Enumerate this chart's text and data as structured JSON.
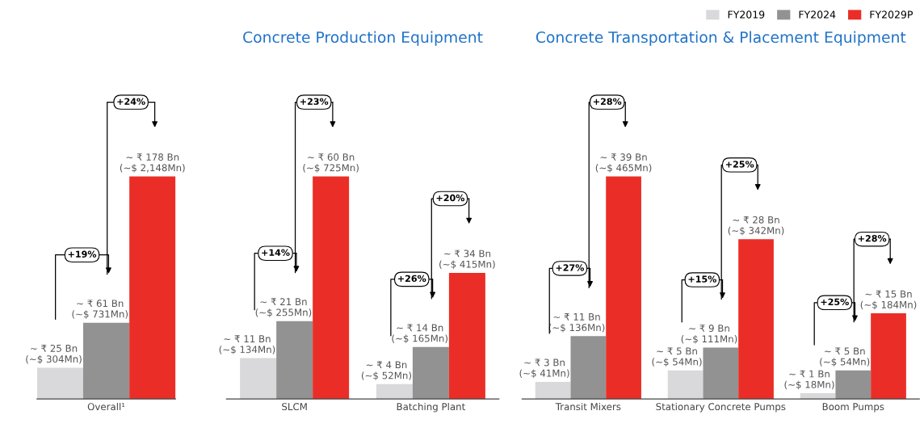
{
  "chart_data": [
    {
      "type": "bar",
      "categories": [
        null,
        "Overall¹",
        null
      ],
      "values": [
        25,
        61,
        178
      ],
      "colors": [
        "#d9d9db",
        "#929292",
        "#ea2e27"
      ],
      "value_labels": [
        "~ ₹ 25 Bn\n(~$ 304Mn)",
        "~ ₹ 61 Bn\n(~$ 731Mn)",
        "~ ₹ 178 Bn\n(~$ 2,148Mn)"
      ],
      "annotations": [
        "+19%",
        "+24%"
      ]
    },
    {
      "type": "bar",
      "title": "Concrete Production Equipment",
      "categories": [
        "SLCM",
        "Batching Plant"
      ],
      "series": [
        {
          "color": "#d9d9db",
          "values": [
            11,
            4
          ],
          "value_labels": [
            "~ ₹ 11 Bn\n(~$ 134Mn)",
            "~ ₹ 4 Bn\n(~$ 52Mn)"
          ]
        },
        {
          "color": "#929292",
          "values": [
            21,
            14
          ],
          "value_labels": [
            "~ ₹ 21 Bn\n(~$ 255Mn)",
            "~ ₹ 14 Bn\n(~$ 165Mn)"
          ]
        },
        {
          "color": "#ea2e27",
          "values": [
            60,
            34
          ],
          "value_labels": [
            "~ ₹ 60 Bn\n(~$ 725Mn)",
            "~ ₹ 34 Bn\n(~$ 415Mn)"
          ]
        }
      ],
      "annotations": [
        "+14%",
        "+23%",
        "+26%",
        "+20%"
      ]
    },
    {
      "type": "bar",
      "title": "Concrete Transportation & Placement Equipment",
      "categories": [
        "Transit Mixers",
        "Stationary Concrete Pumps",
        "Boom Pumps"
      ],
      "series": [
        {
          "name": "FY2019",
          "color": "#d9d9db",
          "values": [
            3,
            5,
            1
          ],
          "value_labels": [
            "~ ₹ 3 Bn\n(~$ 41Mn)",
            "~ ₹ 5 Bn\n(~$ 54Mn)",
            "~ ₹ 1 Bn\n(~$ 18Mn)"
          ]
        },
        {
          "name": "FY2024",
          "color": "#929292",
          "values": [
            11,
            9,
            5
          ],
          "value_labels": [
            "~ ₹ 11 Bn\n(~$ 136Mn)",
            "~ ₹ 9 Bn\n(~$ 111Mn)",
            "~ ₹ 5 Bn\n(~$ 54Mn)"
          ]
        },
        {
          "name": "FY2029P",
          "color": "#ea2e27",
          "values": [
            39,
            28,
            15
          ],
          "value_labels": [
            "~ ₹ 39 Bn\n(~$ 465Mn)",
            "~ ₹ 28 Bn\n(~$ 342Mn)",
            "~ ₹ 15 Bn\n(~$ 184Mn)"
          ]
        }
      ],
      "annotations": [
        "+27%",
        "+28%",
        "+15%",
        "+25%",
        "+25%",
        "+28%"
      ],
      "legend": "top right"
    }
  ]
}
